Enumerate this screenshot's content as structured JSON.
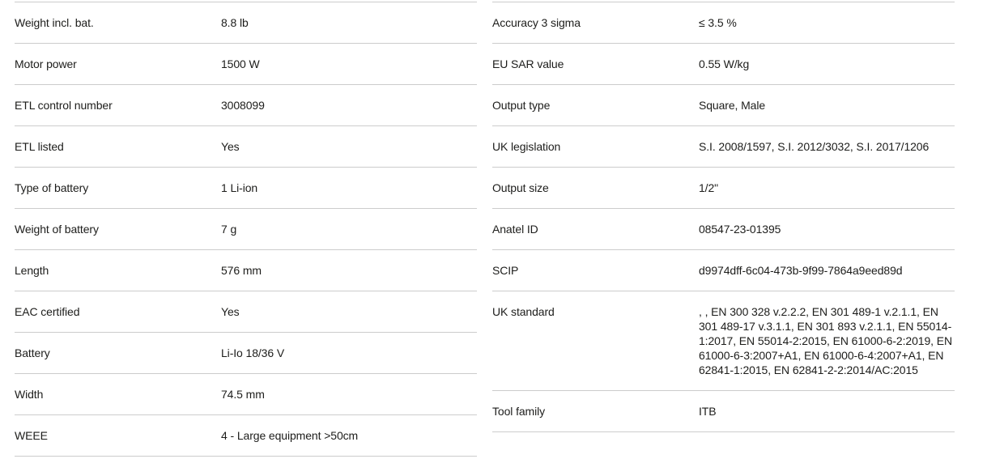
{
  "page": {
    "background_color": "#ffffff",
    "text_color": "#1d1d1b",
    "divider_color": "#cccccc"
  },
  "left_table": {
    "rows": [
      {
        "label": "Weight incl. bat.",
        "value": "8.8 lb"
      },
      {
        "label": "Motor power",
        "value": "1500 W"
      },
      {
        "label": "ETL control number",
        "value": "3008099"
      },
      {
        "label": "ETL listed",
        "value": "Yes"
      },
      {
        "label": "Type of battery",
        "value": "1 Li-ion"
      },
      {
        "label": "Weight of battery",
        "value": "7 g"
      },
      {
        "label": "Length",
        "value": "576 mm"
      },
      {
        "label": "EAC certified",
        "value": "Yes"
      },
      {
        "label": "Battery",
        "value": "Li-Io 18/36 V"
      },
      {
        "label": "Width",
        "value": "74.5 mm"
      },
      {
        "label": "WEEE",
        "value": "4 - Large equipment >50cm"
      }
    ]
  },
  "right_table": {
    "rows": [
      {
        "label": "Accuracy 3 sigma",
        "value": "≤ 3.5 %"
      },
      {
        "label": "EU SAR value",
        "value": "0.55 W/kg"
      },
      {
        "label": "Output type",
        "value": "Square, Male"
      },
      {
        "label": "UK legislation",
        "value": "S.I. 2008/1597, S.I. 2012/3032, S.I. 2017/1206"
      },
      {
        "label": "Output size",
        "value": "1/2\""
      },
      {
        "label": "Anatel ID",
        "value": "08547-23-01395"
      },
      {
        "label": "SCIP",
        "value": "d9974dff-6c04-473b-9f99-7864a9eed89d"
      },
      {
        "label": "UK standard",
        "value": ", , EN 300 328 v.2.2.2, EN 301 489-1 v.2.1.1, EN 301 489-17 v.3.1.1, EN 301 893 v.2.1.1, EN 55014-1:2017, EN 55014-2:2015, EN 61000-6-2:2019, EN 61000-6-3:2007+A1, EN 61000-6-4:2007+A1, EN 62841-1:2015, EN 62841-2-2:2014/AC:2015"
      },
      {
        "label": "Tool family",
        "value": "ITB"
      }
    ]
  }
}
